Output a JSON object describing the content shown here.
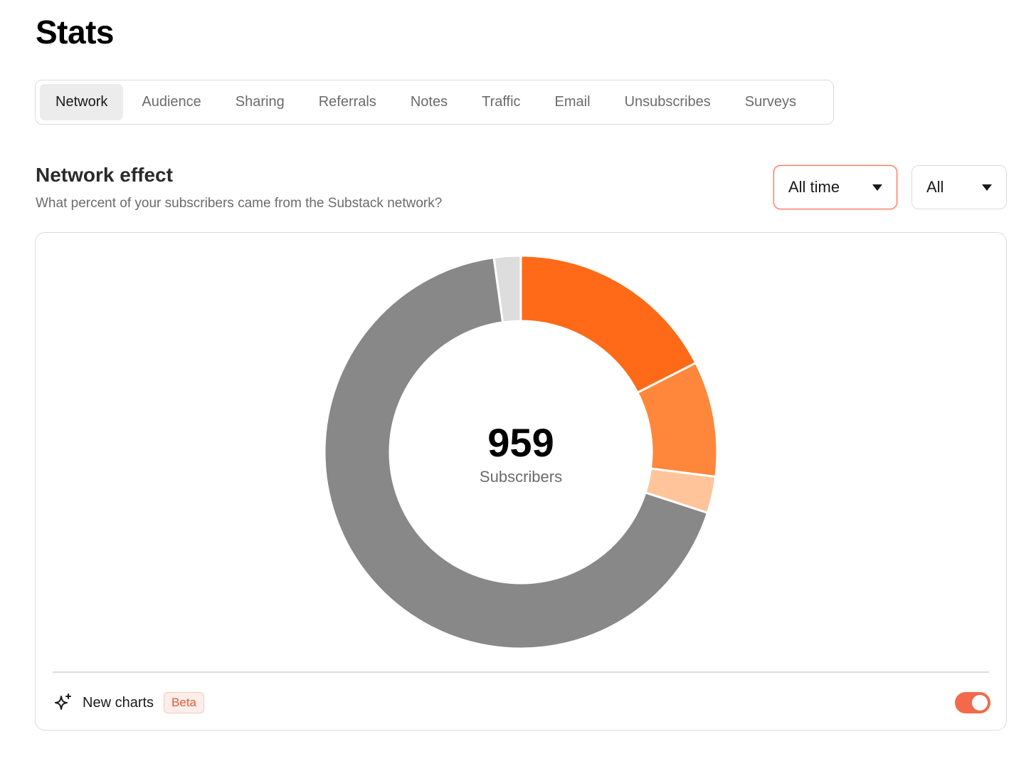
{
  "header": {
    "title": "Stats"
  },
  "tabs": [
    {
      "label": "Network",
      "active": true
    },
    {
      "label": "Audience",
      "active": false
    },
    {
      "label": "Sharing",
      "active": false
    },
    {
      "label": "Referrals",
      "active": false
    },
    {
      "label": "Notes",
      "active": false
    },
    {
      "label": "Traffic",
      "active": false
    },
    {
      "label": "Email",
      "active": false
    },
    {
      "label": "Unsubscribes",
      "active": false
    },
    {
      "label": "Surveys",
      "active": false
    }
  ],
  "section": {
    "title": "Network effect",
    "subtitle": "What percent of your subscribers came from the Substack network?"
  },
  "filters": {
    "time_range": {
      "value": "All time"
    },
    "scope": {
      "value": "All"
    }
  },
  "chart_data": {
    "type": "pie",
    "variant": "donut",
    "total": 959,
    "center_label": "Subscribers",
    "slices": [
      {
        "share": 0.175,
        "color": "#ff6a19"
      },
      {
        "share": 0.095,
        "color": "#ff873b"
      },
      {
        "share": 0.03,
        "color": "#ffc49a"
      },
      {
        "share": 0.678,
        "color": "#888888"
      },
      {
        "share": 0.022,
        "color": "#dddddd"
      }
    ]
  },
  "footer": {
    "icon": "sparkle-icon",
    "label": "New charts",
    "badge": "Beta",
    "toggle_on": true
  },
  "colors": {
    "accent": "#f26a4b",
    "badge_text": "#e7573a"
  }
}
